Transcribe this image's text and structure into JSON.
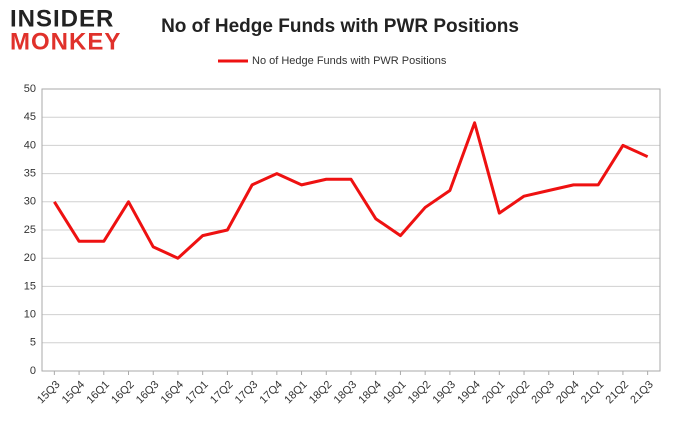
{
  "logo": {
    "line1": "INSIDER",
    "line2": "MONKEY"
  },
  "chart_data": {
    "type": "line",
    "title": "No of Hedge Funds with PWR Positions",
    "categories": [
      "15Q3",
      "15Q4",
      "16Q1",
      "16Q2",
      "16Q3",
      "16Q4",
      "17Q1",
      "17Q2",
      "17Q3",
      "17Q4",
      "18Q1",
      "18Q2",
      "18Q3",
      "18Q4",
      "19Q1",
      "19Q2",
      "19Q3",
      "19Q4",
      "20Q1",
      "20Q2",
      "20Q3",
      "20Q4",
      "21Q1",
      "21Q2",
      "21Q3"
    ],
    "series": [
      {
        "name": "No of Hedge Funds with PWR Positions",
        "color": "#ee1111",
        "values": [
          30,
          23,
          23,
          30,
          22,
          20,
          24,
          25,
          33,
          35,
          33,
          34,
          34,
          27,
          24,
          29,
          32,
          44,
          28,
          31,
          32,
          33,
          33,
          40,
          38
        ]
      }
    ],
    "ylim": [
      0,
      50
    ],
    "yticks": [
      0,
      5,
      10,
      15,
      20,
      25,
      30,
      35,
      40,
      45,
      50
    ],
    "grid": true,
    "legend": "top"
  }
}
